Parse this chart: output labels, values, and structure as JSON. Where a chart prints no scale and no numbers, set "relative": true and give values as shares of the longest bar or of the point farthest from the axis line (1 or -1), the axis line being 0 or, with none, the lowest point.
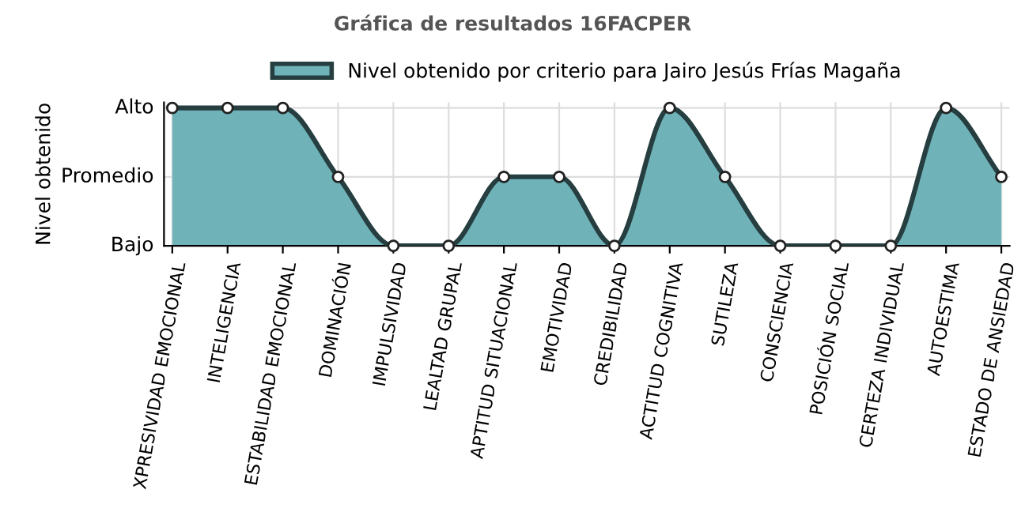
{
  "chart_data": {
    "type": "area",
    "title": "Gráfica de resultados 16FACPER",
    "ylabel": "Nivel obtenido",
    "relative": true,
    "categories": [
      "XPRESIVIDAD EMOCIONAL",
      "INTELIGENCIA",
      "ESTABILIDAD EMOCIONAL",
      "DOMINACIÓN",
      "IMPULSIVIDAD",
      "LEALTAD GRUPAL",
      "APTITUD SITUACIONAL",
      "EMOTIVIDAD",
      "CREDIBILIDAD",
      "ACTITUD COGNITIVA",
      "SUTILEZA",
      "CONSCIENCIA",
      "POSICIÓN SOCIAL",
      "CERTEZA INDIVIDUAL",
      "AUTOESTIMA",
      "ESTADO DE ANSIEDAD"
    ],
    "series": [
      {
        "name": "Nivel obtenido por criterio para Jairo Jesús Frías Magaña",
        "color": "#6fb3b8",
        "values": [
          1,
          1,
          1,
          0.5,
          0,
          0,
          0.5,
          0.5,
          0,
          1,
          0.5,
          0,
          0,
          0,
          1,
          0.5
        ]
      }
    ],
    "annotations": [
      "Alto",
      "Promedio",
      "Bajo"
    ],
    "grid": true,
    "legend": "top",
    "marker": "circle",
    "line_style": "solid"
  }
}
